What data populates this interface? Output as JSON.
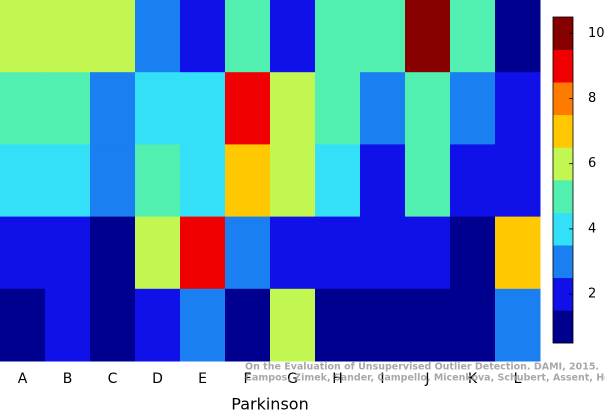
{
  "chart_data": {
    "type": "heatmap",
    "x_label": "Parkinson",
    "categories": [
      "A",
      "B",
      "C",
      "D",
      "E",
      "F",
      "G",
      "H",
      "I",
      "J",
      "K",
      "L"
    ],
    "z": [
      [
        6,
        6,
        6,
        3,
        2,
        5,
        2,
        5,
        5,
        10,
        5,
        1
      ],
      [
        5,
        5,
        3,
        4,
        4,
        9,
        6,
        5,
        3,
        5,
        3,
        2
      ],
      [
        4,
        4,
        3,
        5,
        4,
        7,
        6,
        4,
        2,
        5,
        2,
        2
      ],
      [
        2,
        2,
        1,
        6,
        9,
        3,
        2,
        2,
        2,
        2,
        1,
        7
      ],
      [
        1,
        2,
        1,
        2,
        3,
        1,
        6,
        1,
        1,
        1,
        1,
        3
      ]
    ],
    "colors": [
      "#00008f",
      "#1010e8",
      "#1a7ff0",
      "#33e0f8",
      "#52f0b0",
      "#c2f751",
      "#ffc800",
      "#ff7a00",
      "#f00000",
      "#860000"
    ],
    "clim": [
      0.5,
      10.5
    ],
    "cticks": [
      2,
      4,
      6,
      8,
      10
    ],
    "annotations": [
      "On the Evaluation of Unsupervised Outlier Detection. DAMI, 2015.",
      "Campos, Zimek, Sander, Campello, Micenkova, Schubert, Assent, Houle"
    ]
  }
}
